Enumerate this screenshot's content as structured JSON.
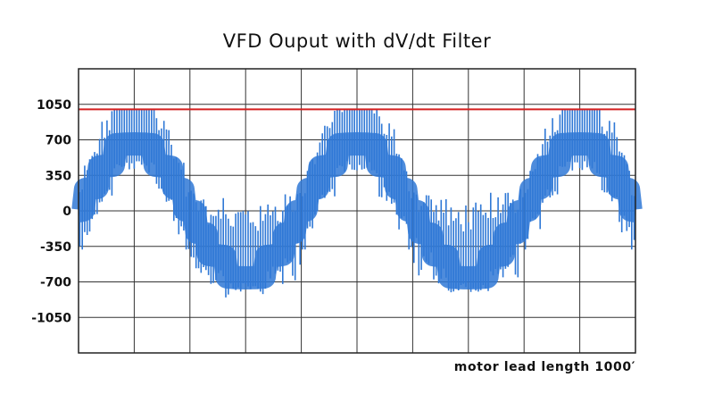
{
  "chart_data": {
    "type": "line",
    "title": "VFD Ouput with dV/dt Filter",
    "xlabel": "motor lead length 1000′",
    "ylabel": "",
    "ylim": [
      -1400,
      1400
    ],
    "yticks": [
      1050,
      700,
      350,
      0,
      -350,
      -700,
      -1050
    ],
    "y_tick_labels": [
      "1050",
      "700",
      "350",
      "0",
      "-350",
      "-700",
      "-1050"
    ],
    "xlim": [
      0,
      2.5
    ],
    "x_gridlines": 10,
    "grid": true,
    "reference_line": {
      "value": 1000,
      "color": "#d42020"
    },
    "series": [
      {
        "color": "#2f78d6",
        "fundamental_cycles": 2.5,
        "fundamental_amplitude": 600,
        "peak_clip": 1000,
        "pulses_per_cycle": 90,
        "envelope": [
          {
            "x": 0.0,
            "y": 0
          },
          {
            "x": 0.125,
            "y": 600
          },
          {
            "x": 0.25,
            "y": 0
          },
          {
            "x": 0.375,
            "y": -600
          },
          {
            "x": 0.5,
            "y": 0
          }
        ]
      }
    ]
  }
}
